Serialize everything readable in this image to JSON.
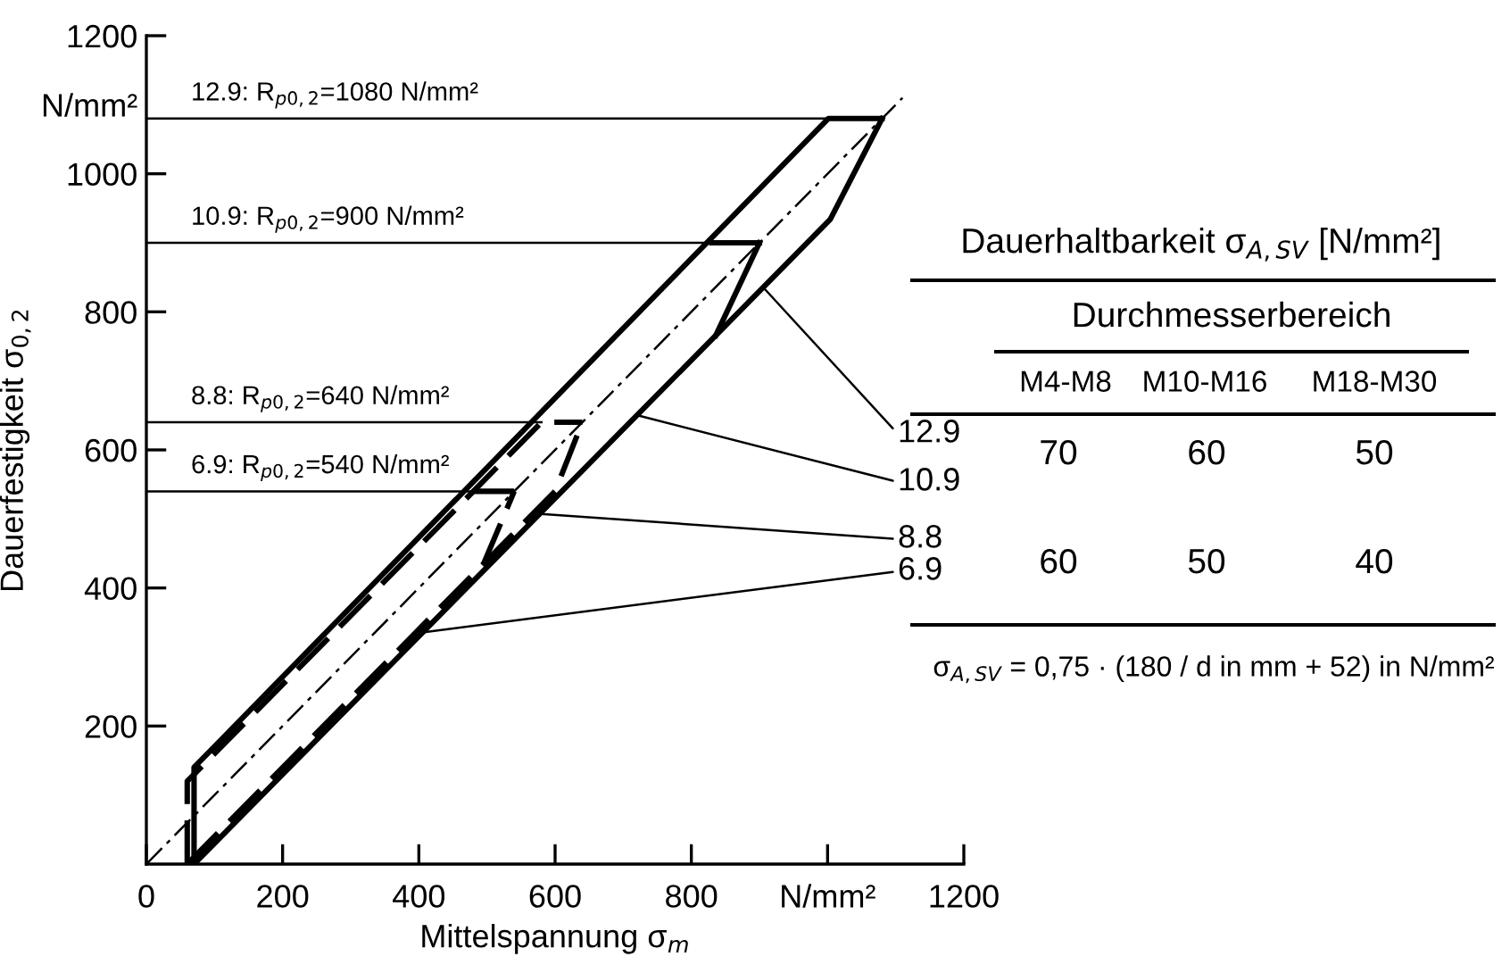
{
  "chart_data": {
    "type": "line",
    "xlabel": "Mittelspannung σ$_{m}$",
    "ylabel": "Dauerfestigkeit σ$_{0,2}$",
    "xlim": [
      0,
      1200
    ],
    "ylim": [
      0,
      1200
    ],
    "xticks": [
      0,
      200,
      400,
      600,
      800,
      {
        "value": 1000,
        "label": "N/mm²"
      },
      1200
    ],
    "yticks": [
      200,
      400,
      600,
      800,
      1000,
      {
        "value": 1100,
        "label": "N/mm²"
      },
      1200
    ],
    "grid": false,
    "legend": false,
    "marker": "none",
    "series": [
      {
        "color": "#000000",
        "line_style": "solid",
        "x": [
          70,
          70,
          1001,
          1080
        ],
        "values": [
          0,
          140,
          1080,
          1080
        ]
      },
      {
        "color": "#000000",
        "line_style": "solid",
        "x": [
          70,
          1004,
          1080
        ],
        "values": [
          0,
          934,
          1080
        ]
      },
      {
        "color": "#000000",
        "line_style": "solid",
        "x": [
          830,
          900
        ],
        "values": [
          900,
          900
        ]
      },
      {
        "color": "#000000",
        "line_style": "solid",
        "x": [
          836,
          900
        ],
        "values": [
          766,
          900
        ]
      },
      {
        "color": "#000000",
        "line_style": "dashed",
        "x": [
          60,
          60,
          580,
          640
        ],
        "values": [
          0,
          120,
          640,
          640
        ]
      },
      {
        "color": "#000000",
        "line_style": "dashed",
        "x": [
          60,
          600,
          640
        ],
        "values": [
          0,
          540,
          640
        ]
      },
      {
        "color": "#000000",
        "line_style": "dashed",
        "x": [
          480,
          540
        ],
        "values": [
          540,
          540
        ]
      },
      {
        "color": "#000000",
        "line_style": "dashed",
        "x": [
          495,
          540
        ],
        "values": [
          435,
          540
        ]
      },
      {
        "color": "#000000",
        "line_style": "dashdot",
        "x": [
          0,
          1110
        ],
        "values": [
          0,
          1110
        ]
      },
      {
        "color": "#000000",
        "line_style": "solid",
        "x": [
          0,
          1001
        ],
        "values": [
          1080,
          1080
        ]
      },
      {
        "color": "#000000",
        "line_style": "solid",
        "x": [
          0,
          830
        ],
        "values": [
          900,
          900
        ]
      },
      {
        "color": "#000000",
        "line_style": "solid",
        "x": [
          0,
          580
        ],
        "values": [
          640,
          640
        ]
      },
      {
        "color": "#000000",
        "line_style": "solid",
        "x": [
          0,
          480
        ],
        "values": [
          540,
          540
        ]
      }
    ],
    "annotations": [
      {
        "text": "12.9",
        "x": 905,
        "y": 836
      },
      {
        "text": "10.9",
        "x": 721,
        "y": 650
      },
      {
        "text": "8.8",
        "x": 570,
        "y": 508
      },
      {
        "text": "6.9",
        "x": 400,
        "y": 335
      },
      {
        "text": "12.9: R$_{p0,2}$=1080 N/mm²",
        "x": 0,
        "y": 1080
      },
      {
        "text": "10.9: R$_{p0,2}$=900 N/mm²",
        "x": 0,
        "y": 900
      },
      {
        "text": "8.8: R$_{p0,2}$=640 N/mm²",
        "x": 0,
        "y": 640
      },
      {
        "text": "6.9: R$_{p0,2}$=540 N/mm²",
        "x": 0,
        "y": 540
      },
      "Dauerhaltbarkeit σ$_{A,SV}$ [N/mm²]",
      "Durchmesserbereich",
      "M4-M8",
      "M10-M16",
      "M18-M30",
      "70",
      "60",
      "50",
      "60",
      "50",
      "40",
      "σ$_{A,SV}$ = 0,75 · (180 / d in mm + 52) in N/mm²"
    ]
  }
}
